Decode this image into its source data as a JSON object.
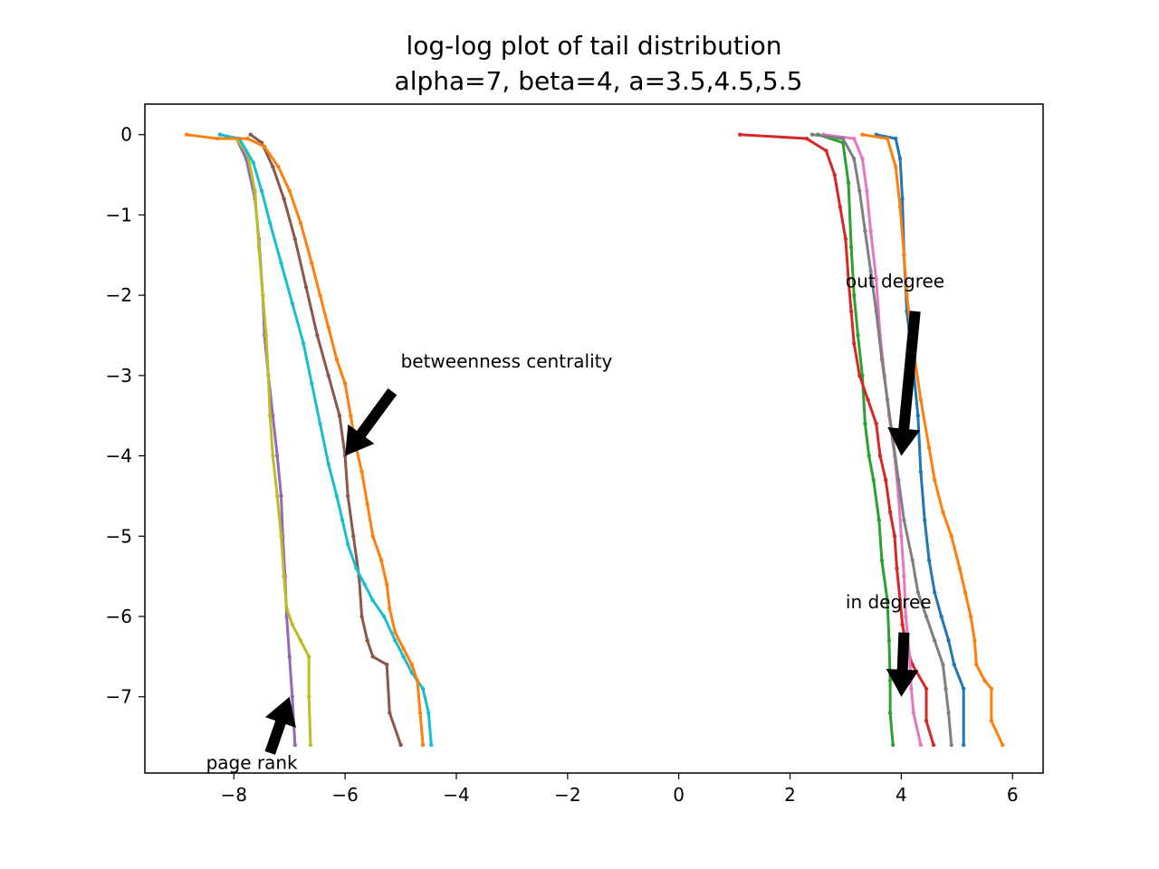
{
  "chart_data": {
    "type": "line",
    "title": "log-log plot of tail distribution",
    "subtitle": "alpha=7, beta=4, a=3.5,4.5,5.5",
    "xlabel": "",
    "ylabel": "",
    "xlim": [
      -9.6,
      6.55
    ],
    "ylim": [
      -7.95,
      0.38
    ],
    "xticks": [
      -8,
      -6,
      -4,
      -2,
      0,
      2,
      4,
      6
    ],
    "xtick_labels": [
      "−8",
      "−6",
      "−4",
      "−2",
      "0",
      "2",
      "4",
      "6"
    ],
    "yticks": [
      0,
      -1,
      -2,
      -3,
      -4,
      -5,
      -6,
      -7
    ],
    "ytick_labels": [
      "0",
      "−1",
      "−2",
      "−3",
      "−4",
      "−5",
      "−6",
      "−7"
    ],
    "grid": false,
    "legend": "none",
    "series": [
      {
        "color": "#1f77b4",
        "points": [
          [
            3.55,
            0
          ],
          [
            3.9,
            -0.05
          ],
          [
            3.98,
            -0.3
          ],
          [
            4.02,
            -0.8
          ],
          [
            4.05,
            -1.5
          ],
          [
            4.1,
            -2.2
          ],
          [
            4.2,
            -2.8
          ],
          [
            4.3,
            -3.5
          ],
          [
            4.35,
            -4.2
          ],
          [
            4.42,
            -4.8
          ],
          [
            4.5,
            -5.3
          ],
          [
            4.6,
            -5.7
          ],
          [
            4.72,
            -6.0
          ],
          [
            4.85,
            -6.3
          ],
          [
            4.95,
            -6.6
          ],
          [
            5.12,
            -6.9
          ],
          [
            5.12,
            -7.6
          ]
        ]
      },
      {
        "color": "#ff7f0e",
        "points": [
          [
            3.3,
            0
          ],
          [
            3.75,
            -0.05
          ],
          [
            3.9,
            -0.4
          ],
          [
            3.98,
            -0.9
          ],
          [
            4.05,
            -1.5
          ],
          [
            4.1,
            -2.0
          ],
          [
            4.2,
            -2.6
          ],
          [
            4.35,
            -3.3
          ],
          [
            4.5,
            -3.9
          ],
          [
            4.6,
            -4.3
          ],
          [
            4.75,
            -4.7
          ],
          [
            4.9,
            -5.0
          ],
          [
            5.05,
            -5.4
          ],
          [
            5.15,
            -5.7
          ],
          [
            5.25,
            -6.0
          ],
          [
            5.32,
            -6.3
          ],
          [
            5.35,
            -6.6
          ],
          [
            5.5,
            -6.8
          ],
          [
            5.62,
            -6.9
          ],
          [
            5.62,
            -7.3
          ],
          [
            5.82,
            -7.6
          ]
        ]
      },
      {
        "color": "#2ca02c",
        "points": [
          [
            2.5,
            0
          ],
          [
            2.95,
            -0.1
          ],
          [
            3.05,
            -0.6
          ],
          [
            3.1,
            -1.4
          ],
          [
            3.15,
            -2.0
          ],
          [
            3.22,
            -2.5
          ],
          [
            3.3,
            -3.0
          ],
          [
            3.35,
            -3.6
          ],
          [
            3.42,
            -4.0
          ],
          [
            3.5,
            -4.3
          ],
          [
            3.6,
            -4.8
          ],
          [
            3.65,
            -5.3
          ],
          [
            3.75,
            -5.8
          ],
          [
            3.78,
            -6.3
          ],
          [
            3.8,
            -6.8
          ],
          [
            3.8,
            -7.2
          ],
          [
            3.85,
            -7.6
          ]
        ]
      },
      {
        "color": "#d62728",
        "points": [
          [
            1.1,
            0
          ],
          [
            2.3,
            -0.05
          ],
          [
            2.65,
            -0.2
          ],
          [
            2.8,
            -0.5
          ],
          [
            2.9,
            -0.9
          ],
          [
            3.0,
            -1.3
          ],
          [
            3.05,
            -1.8
          ],
          [
            3.1,
            -2.2
          ],
          [
            3.15,
            -2.6
          ],
          [
            3.25,
            -3.0
          ],
          [
            3.4,
            -3.3
          ],
          [
            3.55,
            -3.6
          ],
          [
            3.62,
            -4.0
          ],
          [
            3.72,
            -4.3
          ],
          [
            3.8,
            -4.7
          ],
          [
            3.88,
            -5.0
          ],
          [
            3.92,
            -5.4
          ],
          [
            3.98,
            -5.8
          ],
          [
            4.02,
            -6.1
          ],
          [
            4.1,
            -6.4
          ],
          [
            4.2,
            -6.6
          ],
          [
            4.45,
            -6.9
          ],
          [
            4.45,
            -7.3
          ],
          [
            4.58,
            -7.6
          ]
        ]
      },
      {
        "color": "#9467bd",
        "points": [
          [
            -8.25,
            0
          ],
          [
            -7.95,
            -0.05
          ],
          [
            -7.78,
            -0.3
          ],
          [
            -7.62,
            -0.8
          ],
          [
            -7.55,
            -1.3
          ],
          [
            -7.48,
            -2.0
          ],
          [
            -7.45,
            -2.5
          ],
          [
            -7.38,
            -3.0
          ],
          [
            -7.3,
            -3.5
          ],
          [
            -7.22,
            -4.0
          ],
          [
            -7.15,
            -4.5
          ],
          [
            -7.12,
            -5.0
          ],
          [
            -7.08,
            -5.5
          ],
          [
            -7.05,
            -6.0
          ],
          [
            -7.0,
            -6.5
          ],
          [
            -6.95,
            -7.0
          ],
          [
            -6.9,
            -7.6
          ]
        ]
      },
      {
        "color": "#8c564b",
        "points": [
          [
            -7.7,
            0
          ],
          [
            -7.5,
            -0.1
          ],
          [
            -7.3,
            -0.4
          ],
          [
            -7.1,
            -0.8
          ],
          [
            -6.9,
            -1.3
          ],
          [
            -6.7,
            -1.9
          ],
          [
            -6.5,
            -2.5
          ],
          [
            -6.3,
            -3.0
          ],
          [
            -6.1,
            -3.5
          ],
          [
            -6.0,
            -4.0
          ],
          [
            -5.95,
            -4.5
          ],
          [
            -5.85,
            -5.0
          ],
          [
            -5.75,
            -5.5
          ],
          [
            -5.7,
            -6.0
          ],
          [
            -5.6,
            -6.3
          ],
          [
            -5.5,
            -6.5
          ],
          [
            -5.25,
            -6.6
          ],
          [
            -5.2,
            -7.2
          ],
          [
            -5.0,
            -7.6
          ]
        ]
      },
      {
        "color": "#e377c2",
        "points": [
          [
            2.6,
            0
          ],
          [
            3.15,
            -0.05
          ],
          [
            3.3,
            -0.3
          ],
          [
            3.38,
            -0.7
          ],
          [
            3.45,
            -1.2
          ],
          [
            3.55,
            -1.8
          ],
          [
            3.62,
            -2.5
          ],
          [
            3.7,
            -3.0
          ],
          [
            3.78,
            -3.5
          ],
          [
            3.88,
            -4.0
          ],
          [
            3.95,
            -4.5
          ],
          [
            4.0,
            -5.0
          ],
          [
            4.05,
            -5.5
          ],
          [
            4.08,
            -6.0
          ],
          [
            4.15,
            -6.5
          ],
          [
            4.18,
            -6.9
          ],
          [
            4.22,
            -7.2
          ],
          [
            4.35,
            -7.6
          ]
        ]
      },
      {
        "color": "#7f7f7f",
        "points": [
          [
            2.4,
            0
          ],
          [
            2.95,
            -0.05
          ],
          [
            3.15,
            -0.3
          ],
          [
            3.25,
            -0.7
          ],
          [
            3.35,
            -1.2
          ],
          [
            3.45,
            -1.7
          ],
          [
            3.55,
            -2.2
          ],
          [
            3.65,
            -2.8
          ],
          [
            3.75,
            -3.3
          ],
          [
            3.85,
            -3.8
          ],
          [
            3.95,
            -4.3
          ],
          [
            4.05,
            -4.8
          ],
          [
            4.2,
            -5.3
          ],
          [
            4.3,
            -5.7
          ],
          [
            4.45,
            -6.0
          ],
          [
            4.6,
            -6.3
          ],
          [
            4.75,
            -6.6
          ],
          [
            4.8,
            -6.9
          ],
          [
            4.85,
            -7.2
          ],
          [
            4.9,
            -7.6
          ]
        ]
      },
      {
        "color": "#bcbd22",
        "points": [
          [
            -8.25,
            0
          ],
          [
            -7.95,
            -0.05
          ],
          [
            -7.75,
            -0.25
          ],
          [
            -7.62,
            -0.7
          ],
          [
            -7.55,
            -1.4
          ],
          [
            -7.48,
            -2.0
          ],
          [
            -7.42,
            -2.5
          ],
          [
            -7.38,
            -3.0
          ],
          [
            -7.35,
            -3.5
          ],
          [
            -7.3,
            -4.0
          ],
          [
            -7.22,
            -4.5
          ],
          [
            -7.15,
            -5.0
          ],
          [
            -7.1,
            -5.5
          ],
          [
            -7.05,
            -5.9
          ],
          [
            -6.95,
            -6.1
          ],
          [
            -6.8,
            -6.3
          ],
          [
            -6.65,
            -6.5
          ],
          [
            -6.65,
            -7.0
          ],
          [
            -6.62,
            -7.6
          ]
        ]
      },
      {
        "color": "#17becf",
        "points": [
          [
            -8.25,
            0
          ],
          [
            -7.9,
            -0.05
          ],
          [
            -7.65,
            -0.35
          ],
          [
            -7.5,
            -0.7
          ],
          [
            -7.35,
            -1.1
          ],
          [
            -7.15,
            -1.6
          ],
          [
            -6.95,
            -2.1
          ],
          [
            -6.75,
            -2.6
          ],
          [
            -6.6,
            -3.1
          ],
          [
            -6.45,
            -3.6
          ],
          [
            -6.3,
            -4.1
          ],
          [
            -6.15,
            -4.5
          ],
          [
            -6.05,
            -4.8
          ],
          [
            -5.95,
            -5.1
          ],
          [
            -5.8,
            -5.4
          ],
          [
            -5.65,
            -5.6
          ],
          [
            -5.5,
            -5.8
          ],
          [
            -5.3,
            -6.0
          ],
          [
            -5.1,
            -6.3
          ],
          [
            -4.95,
            -6.5
          ],
          [
            -4.8,
            -6.7
          ],
          [
            -4.6,
            -6.9
          ],
          [
            -4.5,
            -7.2
          ],
          [
            -4.45,
            -7.6
          ]
        ]
      },
      {
        "color": "#ff7f0e",
        "points": [
          [
            -8.85,
            0
          ],
          [
            -8.3,
            -0.05
          ],
          [
            -7.75,
            -0.05
          ],
          [
            -7.45,
            -0.15
          ],
          [
            -7.2,
            -0.4
          ],
          [
            -7.0,
            -0.7
          ],
          [
            -6.8,
            -1.1
          ],
          [
            -6.6,
            -1.6
          ],
          [
            -6.45,
            -2.0
          ],
          [
            -6.3,
            -2.4
          ],
          [
            -6.15,
            -2.8
          ],
          [
            -6.0,
            -3.1
          ],
          [
            -5.9,
            -3.5
          ],
          [
            -5.8,
            -3.9
          ],
          [
            -5.7,
            -4.2
          ],
          [
            -5.6,
            -4.6
          ],
          [
            -5.5,
            -5.0
          ],
          [
            -5.35,
            -5.3
          ],
          [
            -5.25,
            -5.6
          ],
          [
            -5.2,
            -5.9
          ],
          [
            -5.1,
            -6.2
          ],
          [
            -4.95,
            -6.4
          ],
          [
            -4.8,
            -6.6
          ],
          [
            -4.7,
            -6.8
          ],
          [
            -4.65,
            -7.2
          ],
          [
            -4.6,
            -7.6
          ]
        ]
      }
    ],
    "annotations": [
      {
        "text": "betweenness centrality",
        "x": -5.0,
        "y": -2.9,
        "arrow_to": [
          -6.0,
          -4.0
        ],
        "arrow_from": [
          -5.15,
          -3.2
        ]
      },
      {
        "text": "out degree",
        "x": 3.0,
        "y": -1.9,
        "arrow_to": [
          4.0,
          -4.0
        ],
        "arrow_from": [
          4.25,
          -2.2
        ]
      },
      {
        "text": "in degree",
        "x": 3.0,
        "y": -5.9,
        "arrow_to": [
          4.0,
          -7.0
        ],
        "arrow_from": [
          4.05,
          -6.2
        ]
      },
      {
        "text": "page rank",
        "x": -8.5,
        "y": -7.9,
        "arrow_to": [
          -7.0,
          -7.0
        ],
        "arrow_from": [
          -7.35,
          -7.7
        ]
      }
    ]
  }
}
